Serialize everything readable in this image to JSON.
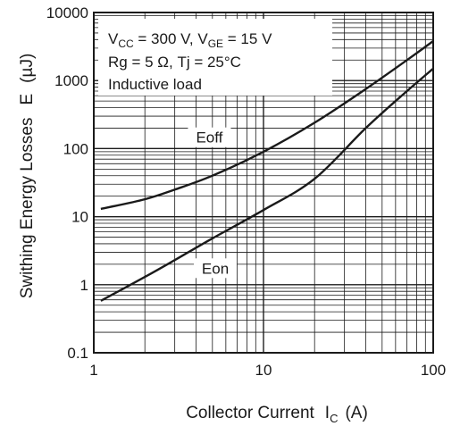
{
  "chart_data": {
    "type": "line",
    "x_scale": "log",
    "y_scale": "log",
    "xlim": [
      1,
      100
    ],
    "ylim": [
      0.1,
      10000
    ],
    "grid": true,
    "xlabel": {
      "text": "Collector Current",
      "symbol": "I",
      "sub": "C",
      "unit": "(A)"
    },
    "ylabel": {
      "text": "Swithing Energy Losses",
      "symbol": "E",
      "unit": "(µJ)"
    },
    "x_ticks": [
      {
        "value": 1,
        "label": "1"
      },
      {
        "value": 10,
        "label": "10"
      },
      {
        "value": 100,
        "label": "100"
      }
    ],
    "y_ticks": [
      {
        "value": 0.1,
        "label": "0.1"
      },
      {
        "value": 1,
        "label": "1"
      },
      {
        "value": 10,
        "label": "10"
      },
      {
        "value": 100,
        "label": "100"
      },
      {
        "value": 1000,
        "label": "1000"
      },
      {
        "value": 10000,
        "label": "10000"
      }
    ],
    "annotations": {
      "line1": {
        "a": "V",
        "a_sub": "CC",
        "b": " = 300 V, V",
        "b_sub": "GE",
        "c": " = 15 V"
      },
      "line2": "Rg = 5 Ω, Tj = 25°C",
      "line3": "Inductive load"
    },
    "series": [
      {
        "name": "Eoff",
        "label_at": [
          4.8,
          130
        ],
        "points": [
          [
            1.1,
            13
          ],
          [
            2,
            18
          ],
          [
            3,
            25
          ],
          [
            5,
            40
          ],
          [
            10,
            90
          ],
          [
            20,
            240
          ],
          [
            40,
            750
          ],
          [
            70,
            2000
          ],
          [
            100,
            3800
          ]
        ]
      },
      {
        "name": "Eon",
        "label_at": [
          5.2,
          1.55
        ],
        "points": [
          [
            1.1,
            0.58
          ],
          [
            2,
            1.3
          ],
          [
            3,
            2.3
          ],
          [
            5,
            4.8
          ],
          [
            10,
            12.5
          ],
          [
            20,
            36
          ],
          [
            40,
            200
          ],
          [
            70,
            700
          ],
          [
            100,
            1500
          ]
        ]
      }
    ]
  },
  "colors": {
    "line": "#1a1a1a",
    "grid": "#1a1a1a",
    "background": "#ffffff"
  }
}
